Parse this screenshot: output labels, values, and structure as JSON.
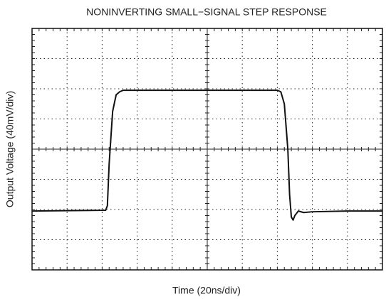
{
  "chart_data": {
    "type": "line",
    "title": "NONINVERTING SMALL−SIGNAL STEP RESPONSE",
    "x_label": "Time (20ns/div)",
    "y_label": "Output Voltage (40mV/div)",
    "xlim": [
      0,
      200
    ],
    "ylim": [
      -160,
      160
    ],
    "xticks": [
      0,
      20,
      40,
      60,
      80,
      100,
      120,
      140,
      160,
      180,
      200
    ],
    "yticks": [
      -160,
      -120,
      -80,
      -40,
      0,
      40,
      80,
      120,
      160
    ],
    "grid": true,
    "x": [
      0,
      42,
      43,
      44,
      46,
      48,
      50,
      52,
      54,
      140,
      142,
      144,
      146,
      147,
      148,
      149,
      150,
      152,
      155,
      160,
      180,
      200
    ],
    "series": [
      {
        "color": "#111111",
        "values": [
          -82,
          -81,
          -75,
          -20,
          50,
          72,
          76,
          78,
          78,
          78,
          76,
          60,
          0,
          -60,
          -90,
          -94,
          -88,
          -82,
          -84,
          -83,
          -82,
          -82
        ]
      }
    ]
  }
}
